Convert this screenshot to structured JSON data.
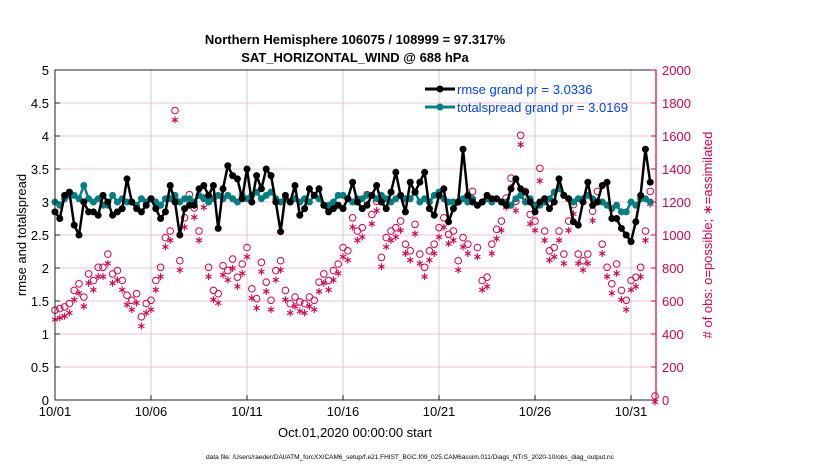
{
  "chart_data": {
    "type": "line",
    "title": "Northern Hemisphere 106075 / 108999 = 97.317%",
    "subtitle": "SAT_HORIZONTAL_WIND @ 688 hPa",
    "xlabel": "Oct.01,2020 00:00:00 start",
    "ylabel": "rmse and totalspread",
    "ylabel_right": "# of obs: o=possible; ∗=assimilated",
    "footer": "data file: /Users/raeder/DAI/ATM_forcXX/CAM6_setup/f.e21.FHIST_BGC.f09_025.CAM6assim.011/Diags_NTrS_2020-10/obs_diag_output.nc",
    "xlim_days": [
      0,
      31.3
    ],
    "x_step_days": 0.25,
    "ylim": [
      0,
      5
    ],
    "ylim_right": [
      0,
      2000
    ],
    "yticks": [
      "0",
      "0.5",
      "1",
      "1.5",
      "2",
      "2.5",
      "3",
      "3.5",
      "4",
      "4.5",
      "5"
    ],
    "yticks_right": [
      "0",
      "200",
      "400",
      "600",
      "800",
      "1000",
      "1200",
      "1400",
      "1600",
      "1800",
      "2000"
    ],
    "xticks": [
      {
        "day": 0,
        "label": "10/01"
      },
      {
        "day": 5,
        "label": "10/06"
      },
      {
        "day": 10,
        "label": "10/11"
      },
      {
        "day": 15,
        "label": "10/16"
      },
      {
        "day": 20,
        "label": "10/21"
      },
      {
        "day": 25,
        "label": "10/26"
      },
      {
        "day": 30,
        "label": "10/31"
      }
    ],
    "legend_position": "top-right",
    "colors": {
      "rmse": "#000000",
      "spread": "#008080",
      "obs": "#d6004f",
      "legend_text": "#0040ff",
      "hgrid": "#f2c4d4",
      "vgrid": "#d0d0d0"
    },
    "series": [
      {
        "name": "rmse grand pr = 3.0336",
        "axis": "left",
        "values": [
          2.85,
          2.75,
          3.1,
          3.15,
          2.65,
          2.5,
          3.0,
          2.85,
          2.85,
          2.8,
          3.1,
          3.0,
          2.8,
          2.85,
          2.9,
          3.35,
          3.0,
          2.9,
          2.85,
          2.95,
          3.05,
          2.9,
          2.75,
          2.85,
          3.25,
          3.0,
          2.5,
          2.9,
          2.95,
          2.95,
          3.2,
          3.25,
          3.1,
          3.25,
          2.6,
          3.2,
          3.55,
          3.4,
          3.35,
          3.05,
          3.5,
          3.0,
          3.4,
          3.2,
          3.5,
          3.4,
          3.0,
          2.55,
          3.1,
          3.0,
          3.25,
          2.8,
          2.9,
          3.2,
          3.1,
          3.2,
          2.95,
          2.85,
          2.9,
          2.95,
          2.9,
          3.05,
          3.3,
          3.0,
          2.9,
          2.95,
          3.1,
          3.25,
          3.0,
          2.9,
          3.15,
          3.45,
          3.1,
          2.85,
          3.3,
          3.15,
          3.3,
          3.45,
          2.9,
          2.8,
          3.1,
          3.2,
          2.7,
          2.9,
          3.0,
          3.8,
          3.1,
          3.0,
          2.95,
          3.0,
          3.1,
          3.05,
          3.05,
          3.0,
          2.95,
          3.2,
          3.35,
          3.2,
          3.15,
          3.0,
          2.85,
          3.0,
          3.05,
          2.9,
          3.0,
          3.35,
          3.1,
          3.05,
          2.7,
          2.65,
          3.0,
          3.3,
          2.95,
          3.0,
          3.25,
          3.3,
          2.75,
          2.75,
          2.6,
          2.5,
          2.4,
          2.7,
          3.1,
          3.8,
          3.3
        ]
      },
      {
        "name": "totalspread grand pr = 3.0169",
        "axis": "left",
        "values": [
          3.0,
          2.95,
          3.05,
          3.1,
          3.1,
          3.05,
          3.25,
          3.05,
          3.0,
          3.05,
          2.95,
          2.95,
          3.1,
          3.0,
          3.05,
          3.0,
          3.0,
          2.95,
          3.05,
          3.0,
          3.05,
          3.0,
          2.95,
          3.05,
          3.05,
          3.1,
          3.0,
          3.05,
          3.05,
          3.0,
          3.1,
          3.05,
          3.0,
          3.05,
          3.1,
          3.05,
          3.1,
          3.05,
          3.0,
          3.1,
          3.05,
          3.1,
          3.15,
          3.05,
          3.1,
          3.15,
          3.05,
          3.0,
          3.05,
          3.0,
          3.05,
          3.0,
          3.05,
          3.0,
          3.1,
          3.05,
          2.95,
          2.95,
          3.0,
          3.1,
          3.1,
          3.05,
          3.0,
          3.05,
          3.05,
          3.1,
          3.1,
          3.05,
          3.1,
          3.05,
          3.0,
          3.05,
          3.1,
          3.05,
          3.05,
          3.15,
          3.0,
          3.05,
          3.0,
          3.1,
          3.15,
          3.05,
          3.0,
          3.0,
          3.0,
          3.05,
          3.0,
          3.05,
          2.95,
          3.0,
          3.05,
          3.0,
          3.05,
          3.0,
          3.0,
          2.95,
          3.05,
          3.1,
          3.0,
          3.05,
          2.95,
          2.95,
          3.0,
          3.05,
          3.15,
          3.2,
          3.1,
          3.05,
          3.0,
          3.05,
          3.05,
          3.1,
          3.05,
          3.0,
          3.0,
          2.95,
          2.9,
          2.95,
          2.85,
          2.85,
          3.0,
          2.95,
          3.05,
          3.05,
          3.0
        ]
      },
      {
        "name": "obs possible",
        "axis": "right",
        "marker": "o",
        "values": [
          520,
          530,
          540,
          560,
          640,
          680,
          600,
          740,
          700,
          780,
          780,
          860,
          740,
          760,
          700,
          610,
          580,
          620,
          480,
          560,
          580,
          700,
          780,
          960,
          1000,
          1730,
          820,
          1080,
          1220,
          1140,
          1000,
          1200,
          780,
          640,
          620,
          790,
          760,
          830,
          720,
          800,
          900,
          650,
          590,
          810,
          690,
          580,
          760,
          820,
          640,
          560,
          600,
          570,
          560,
          600,
          580,
          690,
          740,
          700,
          760,
          800,
          900,
          880,
          1080,
          1000,
          1020,
          1220,
          1100,
          1180,
          840,
          960,
          1000,
          1020,
          1060,
          920,
          880,
          1040,
          860,
          780,
          880,
          920,
          1020,
          1080,
          980,
          1000,
          820,
          960,
          920,
          1240,
          900,
          700,
          720,
          920,
          1010,
          1060,
          1200,
          1320,
          1180,
          1580,
          1240,
          1100,
          1060,
          1380,
          1000,
          880,
          900,
          1000,
          860,
          1060,
          1160,
          860,
          820,
          860,
          1120,
          1240,
          920,
          780,
          680,
          800,
          640,
          580,
          700,
          720,
          780,
          1000,
          1240,
          0
        ]
      },
      {
        "name": "obs assimilated",
        "axis": "right",
        "marker": "*",
        "values": [
          500,
          510,
          520,
          540,
          620,
          660,
          580,
          720,
          680,
          760,
          760,
          840,
          720,
          740,
          680,
          590,
          560,
          600,
          460,
          540,
          560,
          680,
          760,
          940,
          980,
          1710,
          800,
          1060,
          1200,
          1120,
          980,
          1180,
          760,
          620,
          600,
          770,
          740,
          810,
          700,
          780,
          880,
          630,
          570,
          790,
          670,
          560,
          740,
          800,
          620,
          540,
          580,
          550,
          540,
          580,
          560,
          670,
          720,
          680,
          740,
          780,
          880,
          860,
          1060,
          980,
          1000,
          1200,
          1080,
          1160,
          820,
          940,
          980,
          1000,
          1040,
          900,
          860,
          1020,
          840,
          760,
          860,
          900,
          1000,
          1060,
          960,
          980,
          800,
          940,
          900,
          1220,
          880,
          680,
          700,
          900,
          990,
          1040,
          1180,
          1300,
          1160,
          1560,
          1220,
          1080,
          1040,
          1340,
          980,
          860,
          880,
          980,
          840,
          1040,
          1140,
          840,
          800,
          840,
          1100,
          1220,
          900,
          760,
          660,
          780,
          620,
          560,
          680,
          700,
          760,
          980,
          1200,
          0
        ]
      }
    ]
  }
}
